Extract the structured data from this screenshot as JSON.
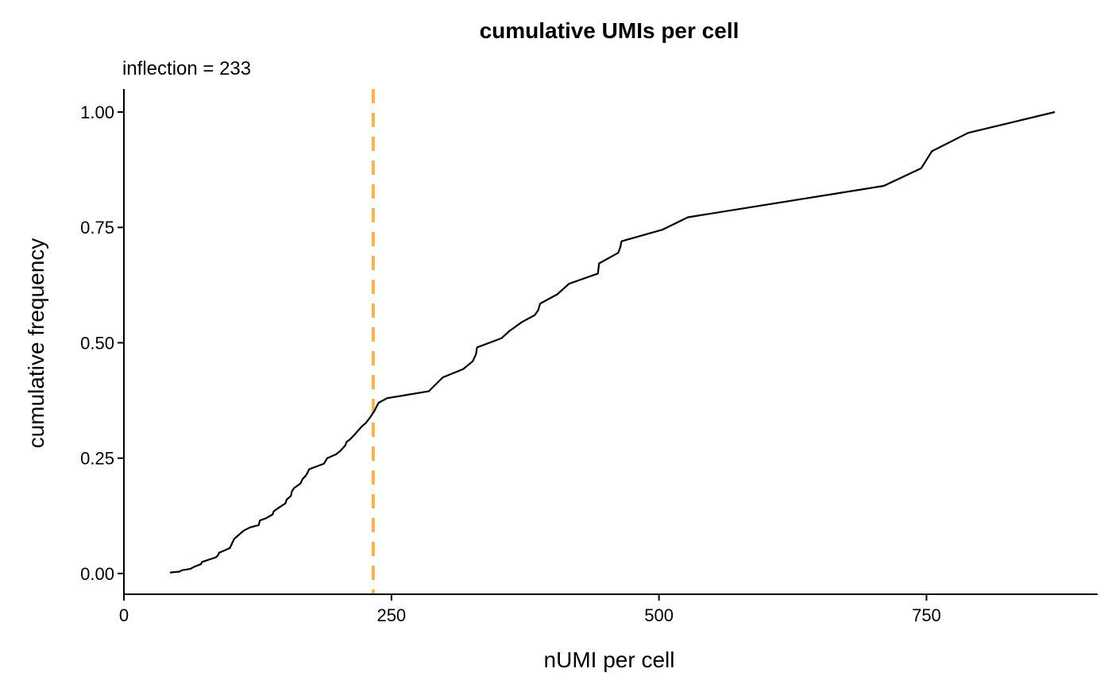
{
  "chart_data": {
    "type": "line",
    "title": "cumulative UMIs per cell",
    "subtitle": "inflection = 233",
    "xlabel": "nUMI per cell",
    "ylabel": "cumulative frequency",
    "xlim": [
      0,
      910
    ],
    "ylim": [
      -0.045,
      1.05
    ],
    "x_ticks": [
      0,
      250,
      500,
      750
    ],
    "x_tick_labels": [
      "0",
      "250",
      "500",
      "750"
    ],
    "y_ticks": [
      0,
      0.25,
      0.5,
      0.75,
      1.0
    ],
    "y_tick_labels": [
      "0.00",
      "0.25",
      "0.50",
      "0.75",
      "1.00"
    ],
    "inflection_x": 233,
    "colors": {
      "line": "#000000",
      "inflection": "#F9B347"
    },
    "grid": false,
    "series": [
      {
        "x": [
          43,
          52,
          54,
          62,
          66,
          72,
          73,
          77,
          86,
          88,
          89,
          99,
          101,
          103,
          108,
          112,
          118,
          126,
          127,
          133,
          139,
          140,
          145,
          151,
          152,
          156,
          157,
          159,
          165,
          167,
          170,
          172,
          173,
          180,
          187,
          190,
          198,
          202,
          204,
          207,
          208,
          211,
          216,
          219,
          222,
          226,
          230,
          234,
          238,
          246,
          285,
          298,
          317,
          326,
          329,
          330,
          353,
          360,
          372,
          384,
          387,
          389,
          405,
          416,
          443,
          444,
          462,
          464,
          465,
          503,
          527,
          710,
          745,
          755,
          789,
          870
        ],
        "y": [
          0.002,
          0.004,
          0.007,
          0.01,
          0.015,
          0.02,
          0.025,
          0.028,
          0.035,
          0.04,
          0.045,
          0.055,
          0.065,
          0.075,
          0.085,
          0.093,
          0.1,
          0.105,
          0.115,
          0.12,
          0.128,
          0.135,
          0.143,
          0.152,
          0.16,
          0.168,
          0.178,
          0.185,
          0.195,
          0.205,
          0.212,
          0.22,
          0.226,
          0.232,
          0.238,
          0.25,
          0.258,
          0.265,
          0.27,
          0.278,
          0.285,
          0.29,
          0.302,
          0.31,
          0.318,
          0.326,
          0.338,
          0.352,
          0.37,
          0.38,
          0.395,
          0.425,
          0.443,
          0.46,
          0.475,
          0.49,
          0.51,
          0.525,
          0.545,
          0.56,
          0.57,
          0.585,
          0.605,
          0.628,
          0.65,
          0.672,
          0.695,
          0.708,
          0.72,
          0.745,
          0.772,
          0.84,
          0.878,
          0.915,
          0.955,
          1.0
        ]
      }
    ]
  }
}
